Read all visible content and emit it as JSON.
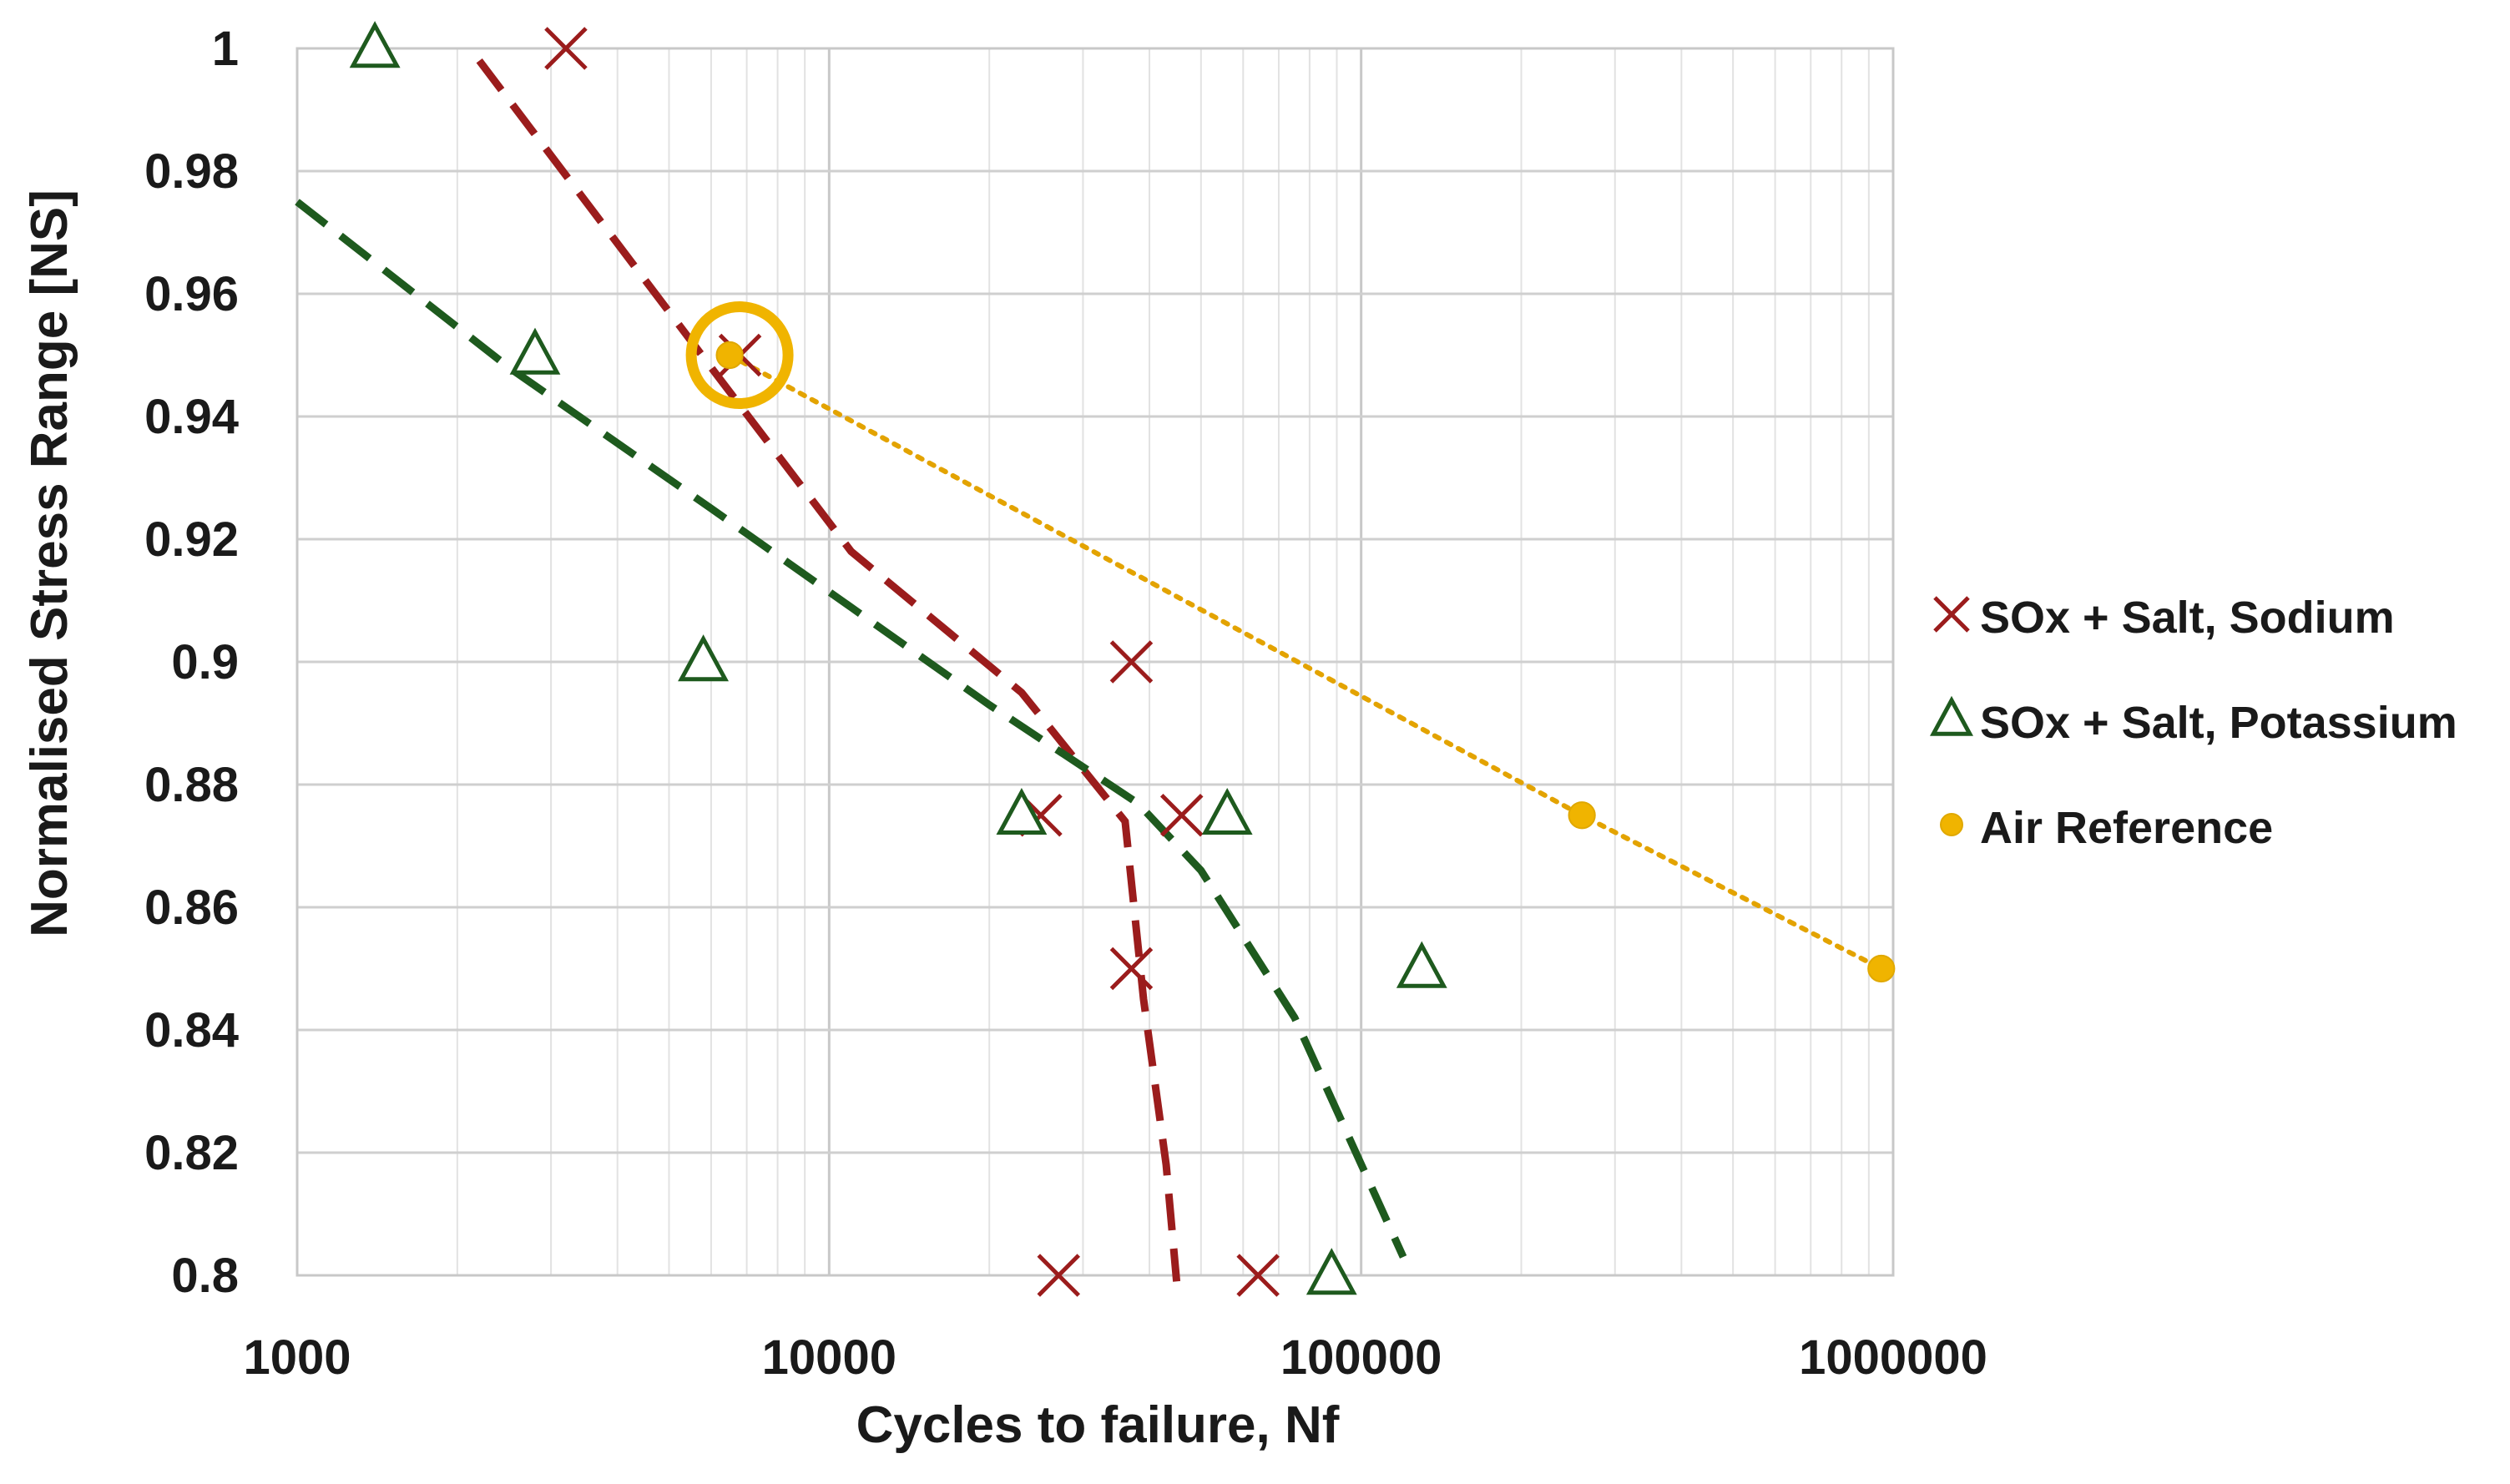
{
  "chart_data": {
    "type": "scatter",
    "title": "",
    "xlabel": "Cycles to failure, Nf",
    "ylabel": "Normalised Stress Range [NS]",
    "xscale": "log",
    "xlim": [
      1000,
      1000000
    ],
    "ylim": [
      0.8,
      1.0
    ],
    "x_ticks": [
      1000,
      10000,
      100000,
      1000000
    ],
    "x_tick_labels": [
      "1000",
      "10000",
      "100000",
      "1000000"
    ],
    "y_ticks": [
      0.8,
      0.82,
      0.84,
      0.86,
      0.88,
      0.9,
      0.92,
      0.94,
      0.96,
      0.98,
      1.0
    ],
    "y_tick_labels": [
      "0.8",
      "0.82",
      "0.84",
      "0.86",
      "0.88",
      "0.9",
      "0.92",
      "0.94",
      "0.96",
      "0.98",
      "1"
    ],
    "grid": true,
    "legend_position": "right",
    "series": [
      {
        "name": "SOx + Salt, Sodium",
        "marker": "x",
        "color": "#9b1c1c",
        "points": [
          {
            "x": 3200,
            "y": 1.0
          },
          {
            "x": 6800,
            "y": 0.95
          },
          {
            "x": 37000,
            "y": 0.9
          },
          {
            "x": 25000,
            "y": 0.875
          },
          {
            "x": 46000,
            "y": 0.875
          },
          {
            "x": 37000,
            "y": 0.85
          },
          {
            "x": 27000,
            "y": 0.8
          },
          {
            "x": 64000,
            "y": 0.8
          }
        ],
        "trendline": [
          {
            "x": 2200,
            "y": 0.998
          },
          {
            "x": 6000,
            "y": 0.948
          },
          {
            "x": 11000,
            "y": 0.918
          },
          {
            "x": 23000,
            "y": 0.895
          },
          {
            "x": 36000,
            "y": 0.874
          },
          {
            "x": 39000,
            "y": 0.845
          },
          {
            "x": 43000,
            "y": 0.818
          },
          {
            "x": 45000,
            "y": 0.799
          }
        ]
      },
      {
        "name": "SOx + Salt, Potassium",
        "marker": "triangle",
        "color": "#1e5a1e",
        "points": [
          {
            "x": 1400,
            "y": 1.0
          },
          {
            "x": 2800,
            "y": 0.95
          },
          {
            "x": 5800,
            "y": 0.9
          },
          {
            "x": 23000,
            "y": 0.875
          },
          {
            "x": 56000,
            "y": 0.875
          },
          {
            "x": 130000,
            "y": 0.85
          },
          {
            "x": 88000,
            "y": 0.8
          }
        ],
        "trendline": [
          {
            "x": 1000,
            "y": 0.975
          },
          {
            "x": 2500,
            "y": 0.948
          },
          {
            "x": 6000,
            "y": 0.925
          },
          {
            "x": 20000,
            "y": 0.893
          },
          {
            "x": 38000,
            "y": 0.877
          },
          {
            "x": 50000,
            "y": 0.866
          },
          {
            "x": 75000,
            "y": 0.842
          },
          {
            "x": 120000,
            "y": 0.803
          }
        ]
      },
      {
        "name": "Air Reference",
        "marker": "circle",
        "color": "#f0b400",
        "points": [
          {
            "x": 6500,
            "y": 0.95
          },
          {
            "x": 260000,
            "y": 0.875
          },
          {
            "x": 950000,
            "y": 0.85
          }
        ],
        "highlight_point_index": 0,
        "trendline": [
          {
            "x": 6500,
            "y": 0.95
          },
          {
            "x": 260000,
            "y": 0.875
          },
          {
            "x": 950000,
            "y": 0.85
          }
        ]
      }
    ]
  }
}
